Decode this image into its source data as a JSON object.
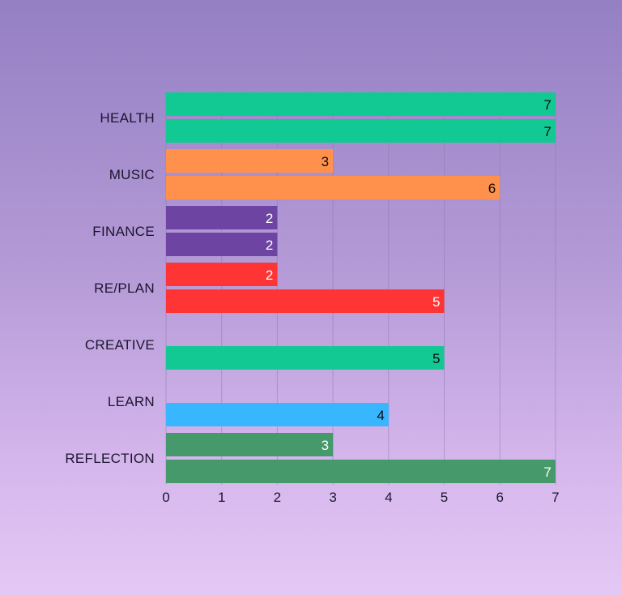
{
  "chart_data": {
    "type": "bar",
    "orientation": "horizontal",
    "categories": [
      "HEALTH",
      "MUSIC",
      "FINANCE",
      "RE/PLAN",
      "CREATIVE",
      "LEARN",
      "REFLECTION"
    ],
    "series": [
      {
        "values": [
          7,
          3,
          2,
          2,
          null,
          null,
          3
        ]
      },
      {
        "values": [
          7,
          6,
          2,
          5,
          5,
          4,
          7
        ]
      }
    ],
    "category_colors": [
      "#12c994",
      "#ff914d",
      "#6e44a3",
      "#ff3434",
      "#12c994",
      "#38b6ff",
      "#45996b"
    ],
    "label_colors": [
      "#0a0a0a",
      "#0a0a0a",
      "#ffffff",
      "#ffffff",
      "#0a0a0a",
      "#0a0a0a",
      "#ffffff"
    ],
    "x_ticks": [
      0,
      1,
      2,
      3,
      4,
      5,
      6,
      7
    ],
    "xlim": [
      0,
      7
    ],
    "grid": "vertical",
    "legend": "none"
  }
}
